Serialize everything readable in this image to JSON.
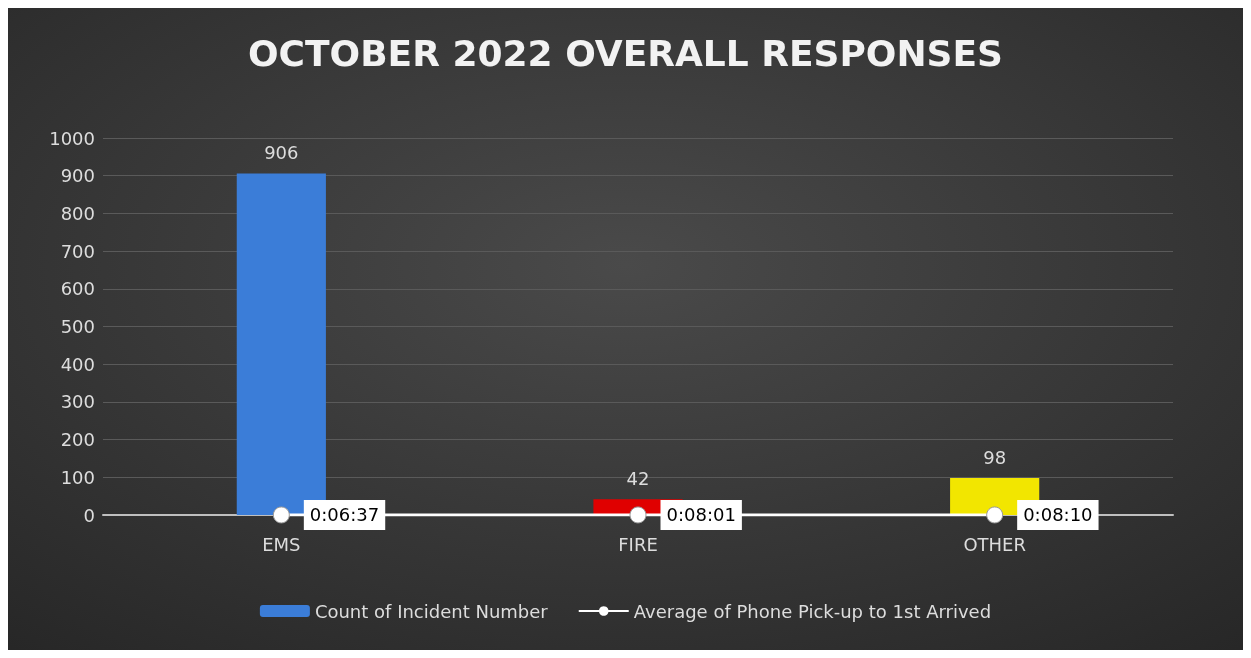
{
  "chart_data": {
    "type": "bar",
    "title": "OCTOBER 2022 OVERALL RESPONSES",
    "categories": [
      "EMS",
      "FIRE",
      "OTHER"
    ],
    "series": [
      {
        "name": "Count of Incident Number",
        "color": "#3b7dd8",
        "colors": [
          "#3b7dd8",
          "#e00000",
          "#f2e600"
        ],
        "values": [
          906,
          42,
          98
        ]
      },
      {
        "name": "Average of Phone Pick-up to 1st Arrived",
        "type": "line",
        "color": "#ffffff",
        "marker": "circle",
        "values": [
          0.110278,
          0.133611,
          0.136111
        ],
        "value_labels": [
          "0:06:37",
          "0:08:01",
          "0:08:10"
        ]
      }
    ],
    "data_labels": true,
    "ylim": [
      0,
      1000
    ],
    "yticks": [
      0,
      100,
      200,
      300,
      400,
      500,
      600,
      700,
      800,
      900,
      1000
    ],
    "grid": "y",
    "legend": "bottom"
  }
}
